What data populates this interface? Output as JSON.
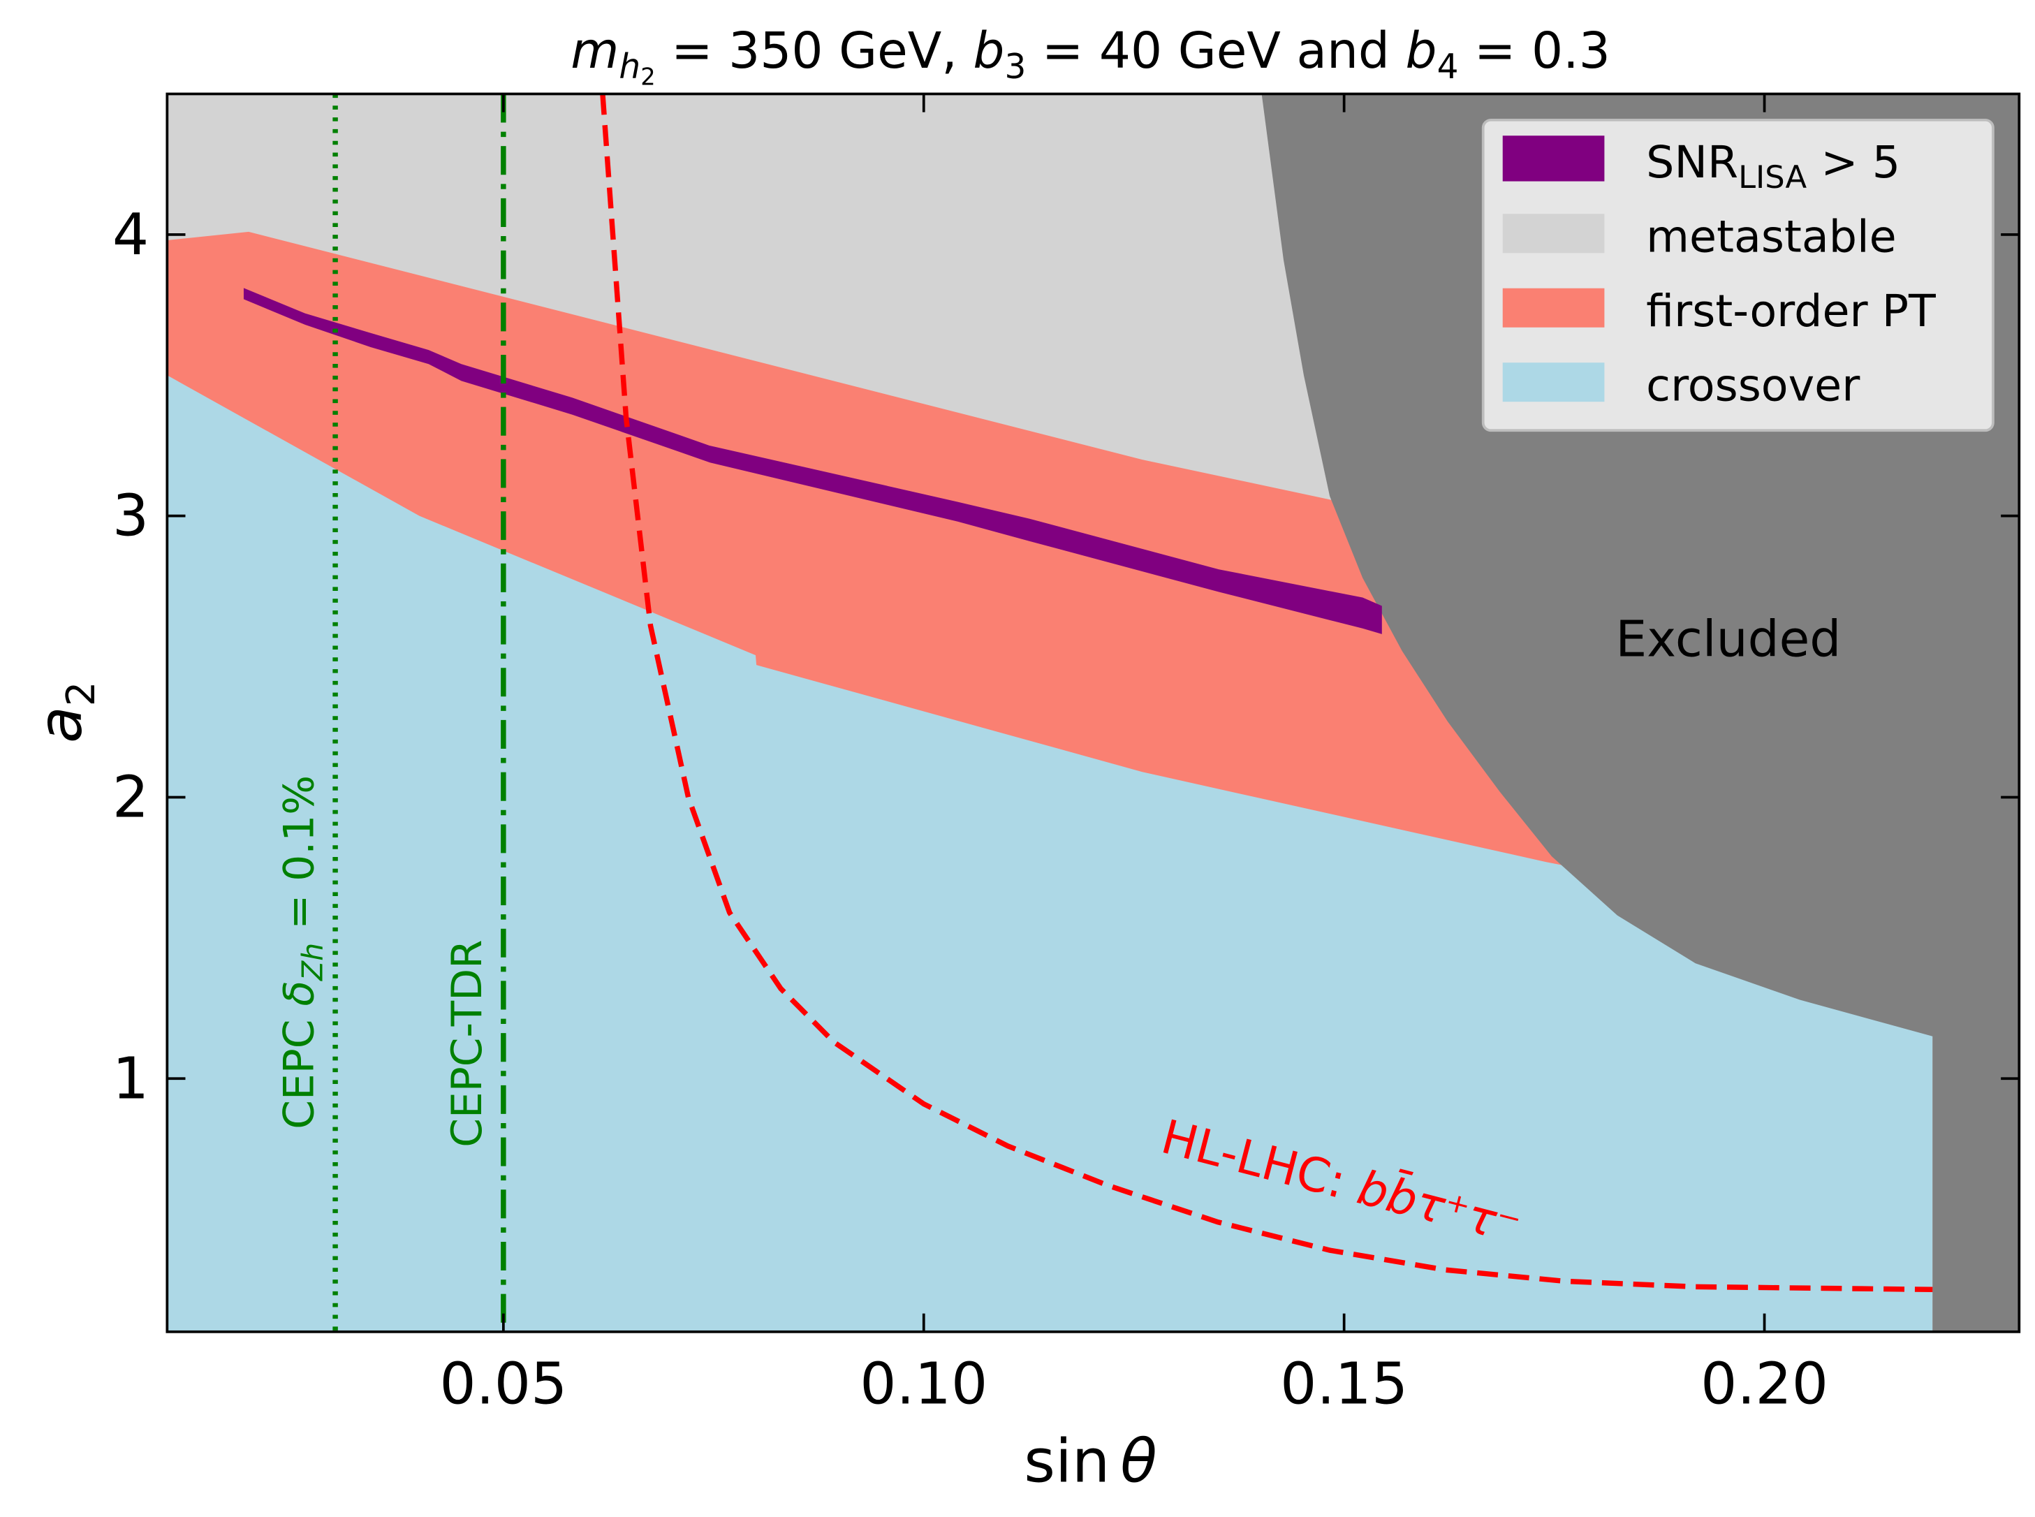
{
  "chart_data": {
    "type": "area",
    "title_parts": [
      {
        "text": "m",
        "style": "italic"
      },
      {
        "text": "h",
        "style": "italic-sub"
      },
      {
        "text": "2",
        "style": "subsub"
      },
      {
        "text": " = 350 GeV, ",
        "style": "normal"
      },
      {
        "text": "b",
        "style": "italic"
      },
      {
        "text": "3",
        "style": "sub"
      },
      {
        "text": " = 40 GeV and ",
        "style": "normal"
      },
      {
        "text": "b",
        "style": "italic"
      },
      {
        "text": "4",
        "style": "sub"
      },
      {
        "text": " = 0.3",
        "style": "normal"
      }
    ],
    "xlabel": {
      "main": "sin",
      "var": "θ"
    },
    "ylabel": {
      "main": "a",
      "sub": "2"
    },
    "xlim": [
      0.01,
      0.2303
    ],
    "ylim": [
      0.1,
      4.5
    ],
    "xticks": [
      0.05,
      0.1,
      0.15,
      0.2
    ],
    "xtick_labels": [
      "0.05",
      "0.10",
      "0.15",
      "0.20"
    ],
    "yticks": [
      1,
      2,
      3,
      4
    ],
    "ytick_labels": [
      "1",
      "2",
      "3",
      "4"
    ],
    "grid": false,
    "legend_position": "top-right",
    "colors": {
      "snr": "#800080",
      "metastable": "#d3d3d3",
      "first_order": "#fa8072",
      "crossover": "#add8e6",
      "excluded": "#808080",
      "hl_lhc": "#ff0000",
      "cepc": "#008000"
    },
    "legend": [
      {
        "key": "snr",
        "label": "SNR",
        "sub": "LISA",
        "suffix": " > 5"
      },
      {
        "key": "metastable",
        "label": "metastable"
      },
      {
        "key": "first_order",
        "label": "first-order PT"
      },
      {
        "key": "crossover",
        "label": "crossover"
      }
    ],
    "regions": {
      "first_order_upper": [
        [
          0.01,
          3.98
        ],
        [
          0.0197,
          4.01
        ],
        [
          0.126,
          3.2
        ],
        [
          0.148,
          3.06
        ],
        [
          0.22,
          2.6
        ]
      ],
      "crossover_upper": [
        [
          0.01,
          3.5
        ],
        [
          0.04,
          3.0
        ],
        [
          0.08,
          2.505
        ],
        [
          0.0801,
          2.47
        ],
        [
          0.126,
          2.09
        ],
        [
          0.174,
          1.77
        ],
        [
          0.22,
          1.5
        ]
      ],
      "excluded_boundary": [
        [
          0.1402,
          4.5
        ],
        [
          0.1428,
          3.91
        ],
        [
          0.1452,
          3.5
        ],
        [
          0.1483,
          3.07
        ],
        [
          0.1522,
          2.78
        ],
        [
          0.1569,
          2.52
        ],
        [
          0.1623,
          2.27
        ],
        [
          0.1685,
          2.02
        ],
        [
          0.1747,
          1.79
        ],
        [
          0.1825,
          1.58
        ],
        [
          0.1918,
          1.41
        ],
        [
          0.2042,
          1.28
        ],
        [
          0.22,
          1.15
        ],
        [
          0.22,
          0.1
        ]
      ],
      "snr_upper": [
        [
          0.0191,
          3.81
        ],
        [
          0.0264,
          3.72
        ],
        [
          0.0342,
          3.65
        ],
        [
          0.0411,
          3.59
        ],
        [
          0.045,
          3.54
        ],
        [
          0.0582,
          3.42
        ],
        [
          0.0707,
          3.29
        ],
        [
          0.0745,
          3.25
        ],
        [
          0.104,
          3.05
        ],
        [
          0.1126,
          2.99
        ],
        [
          0.1351,
          2.81
        ],
        [
          0.1522,
          2.71
        ],
        [
          0.1545,
          2.68
        ]
      ],
      "snr_lower": [
        [
          0.0191,
          3.77
        ],
        [
          0.0264,
          3.68
        ],
        [
          0.0342,
          3.6
        ],
        [
          0.0411,
          3.54
        ],
        [
          0.045,
          3.48
        ],
        [
          0.0582,
          3.36
        ],
        [
          0.0707,
          3.23
        ],
        [
          0.0745,
          3.19
        ],
        [
          0.104,
          2.98
        ],
        [
          0.1126,
          2.91
        ],
        [
          0.1351,
          2.73
        ],
        [
          0.1522,
          2.6
        ],
        [
          0.1545,
          2.58
        ]
      ]
    },
    "lines": {
      "cepc_zh": {
        "x": 0.03,
        "label": "CEPC ",
        "label_var": "δ",
        "label_sub": "Zh",
        "label_suffix": " = 0.1%"
      },
      "cepc_tdr": {
        "x": 0.05,
        "label": "CEPC-TDR"
      },
      "hl_lhc": {
        "label": "HL-LHC: ",
        "label_math": "bb̄τ⁺τ⁻",
        "points": [
          [
            0.0618,
            4.5
          ],
          [
            0.0646,
            3.35
          ],
          [
            0.0675,
            2.61
          ],
          [
            0.072,
            2.0
          ],
          [
            0.0769,
            1.59
          ],
          [
            0.083,
            1.32
          ],
          [
            0.0893,
            1.13
          ],
          [
            0.1,
            0.91
          ],
          [
            0.11,
            0.76
          ],
          [
            0.1219,
            0.62
          ],
          [
            0.135,
            0.49
          ],
          [
            0.1483,
            0.39
          ],
          [
            0.162,
            0.32
          ],
          [
            0.1762,
            0.28
          ],
          [
            0.1918,
            0.26
          ],
          [
            0.22,
            0.25
          ]
        ]
      }
    },
    "annotations": {
      "excluded": "Excluded"
    }
  }
}
